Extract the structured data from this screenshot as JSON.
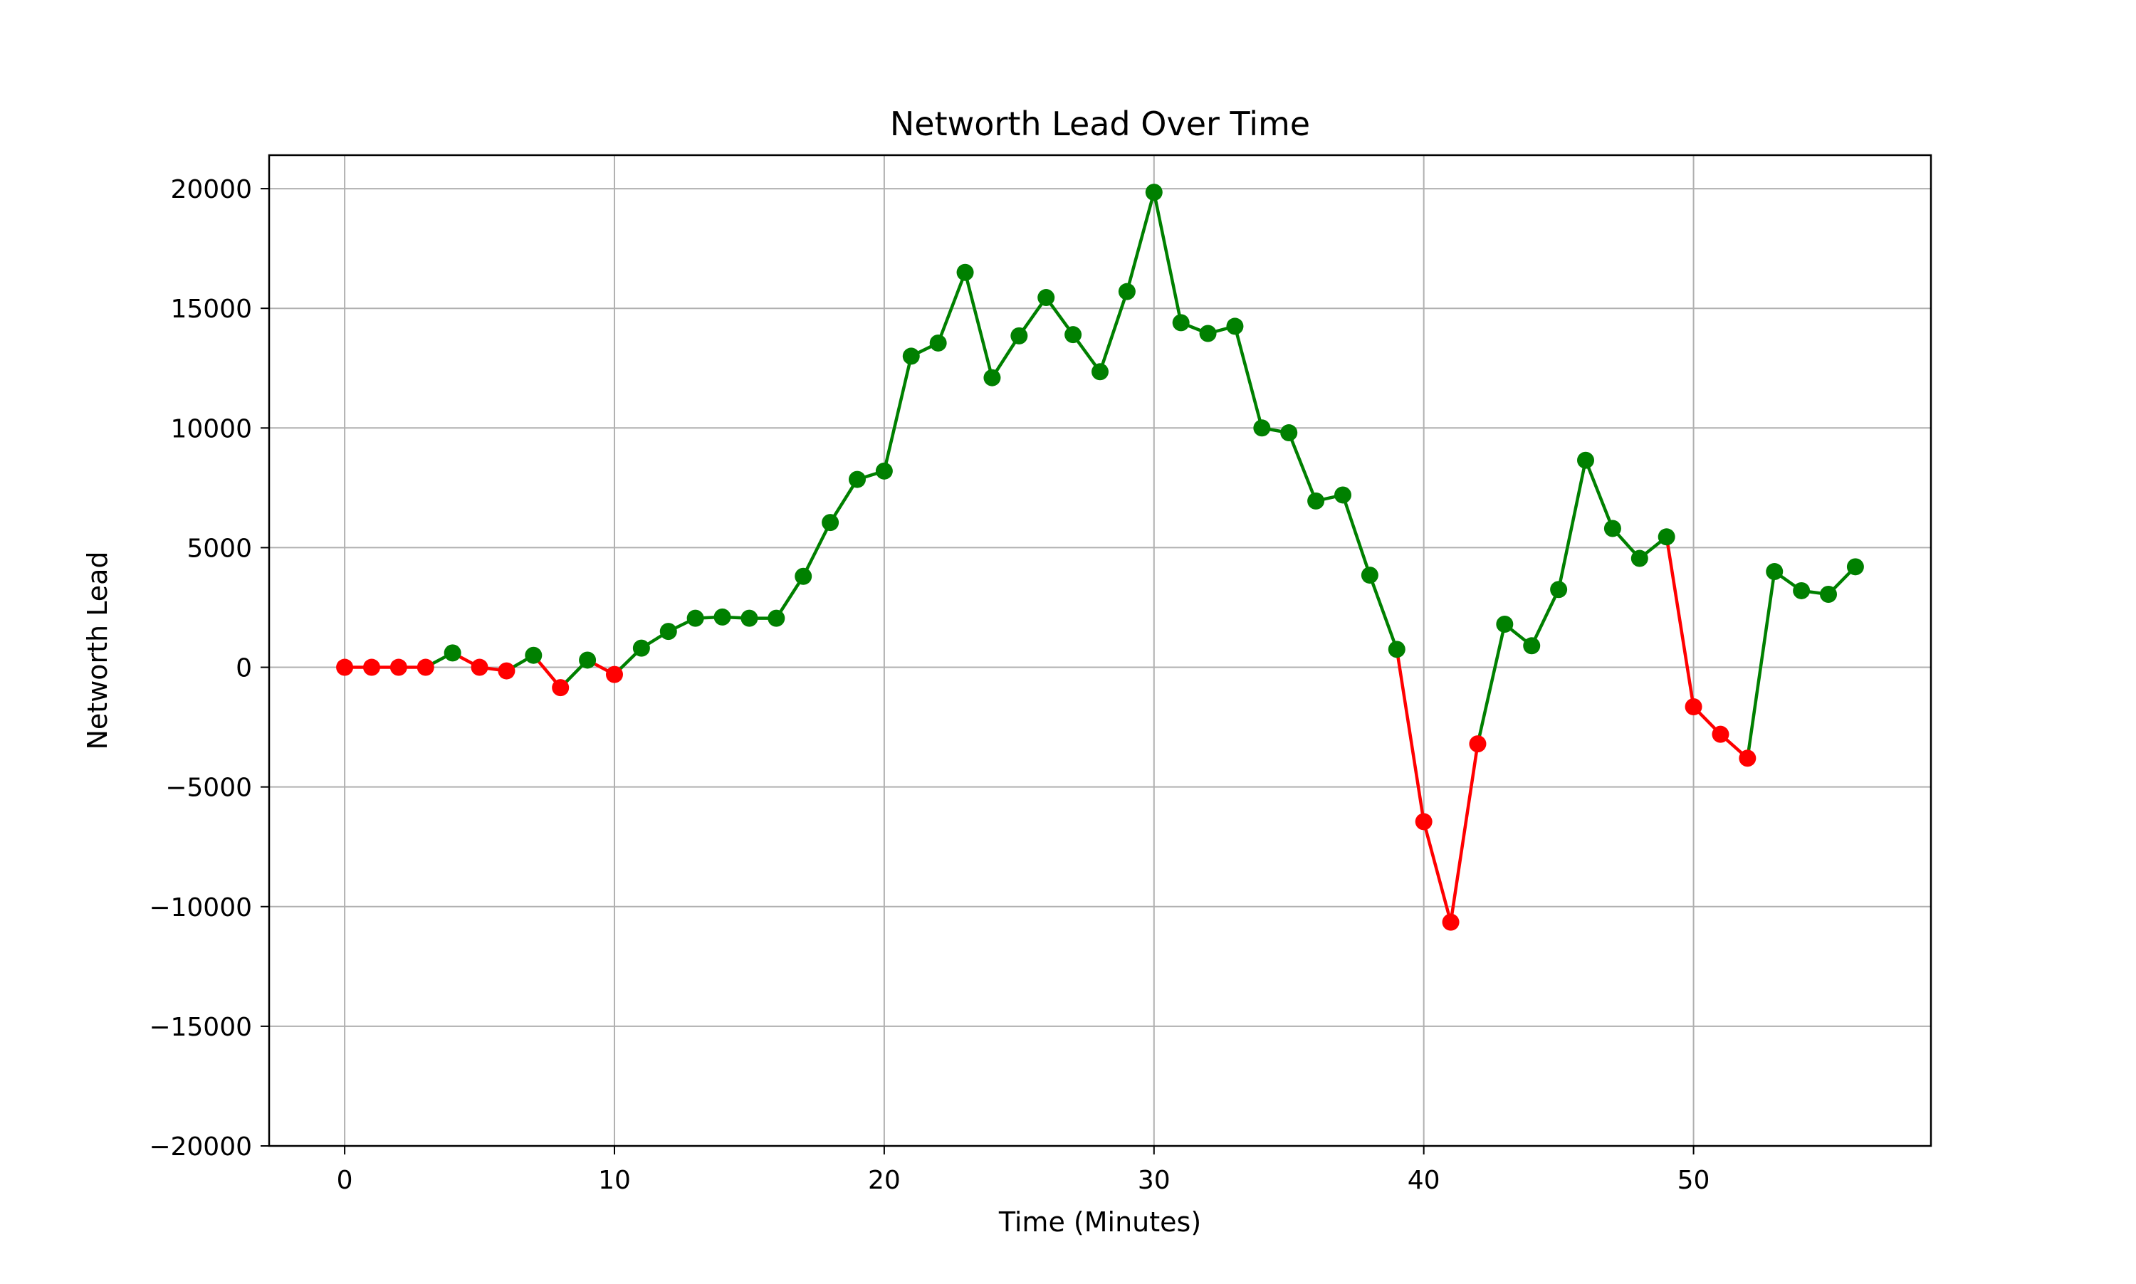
{
  "chart_data": {
    "type": "line",
    "title": "Networth Lead Over Time",
    "xlabel": "Time (Minutes)",
    "ylabel": "Networth Lead",
    "xlim": [
      -2.8,
      58.8
    ],
    "ylim": [
      -20000,
      21400
    ],
    "x_ticks": [
      0,
      10,
      20,
      30,
      40,
      50
    ],
    "y_ticks": [
      -20000,
      -15000,
      -10000,
      -5000,
      0,
      5000,
      10000,
      15000,
      20000
    ],
    "x_tick_labels": [
      "0",
      "10",
      "20",
      "30",
      "40",
      "50"
    ],
    "y_tick_labels": [
      "−20000",
      "−15000",
      "−10000",
      "−5000",
      "0",
      "5000",
      "10000",
      "15000",
      "20000"
    ],
    "grid": true,
    "legend": "none",
    "colors": {
      "positive": "#008000",
      "negative": "#ff0000",
      "grid": "#b0b0b0",
      "axes": "#000000",
      "background": "#ffffff"
    },
    "series": [
      {
        "x": [
          0,
          1,
          2,
          3,
          4,
          5,
          6,
          7,
          8,
          9,
          10,
          11,
          12,
          13,
          14,
          15,
          16,
          17,
          18,
          19,
          20,
          21,
          22,
          23,
          24,
          25,
          26,
          27,
          28,
          29,
          30,
          31,
          32,
          33,
          34,
          35,
          36,
          37,
          38,
          39,
          40,
          41,
          42,
          43,
          44,
          45,
          46,
          47,
          48,
          49,
          50,
          51,
          52,
          53,
          54,
          55,
          56
        ],
        "values": [
          0,
          0,
          0,
          0,
          600,
          0,
          -150,
          500,
          -850,
          300,
          -300,
          800,
          1500,
          2050,
          2100,
          2050,
          2050,
          3800,
          6050,
          7850,
          8200,
          13000,
          13550,
          16500,
          12100,
          13850,
          15450,
          13900,
          12350,
          15700,
          19850,
          14400,
          13950,
          14250,
          10000,
          9800,
          6950,
          7200,
          3850,
          750,
          -6450,
          -10650,
          -3200,
          1800,
          900,
          3250,
          8650,
          5800,
          4550,
          5450,
          -1650,
          -2800,
          -3800,
          4000,
          3200,
          3050,
          4200
        ]
      }
    ]
  }
}
